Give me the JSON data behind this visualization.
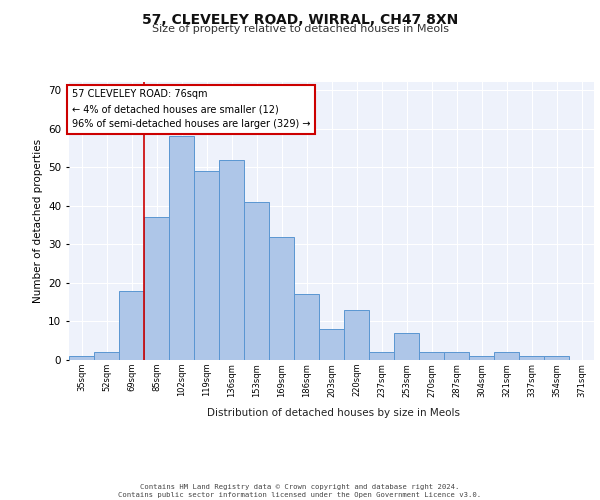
{
  "title1": "57, CLEVELEY ROAD, WIRRAL, CH47 8XN",
  "title2": "Size of property relative to detached houses in Meols",
  "xlabel": "Distribution of detached houses by size in Meols",
  "ylabel": "Number of detached properties",
  "bin_labels": [
    "35sqm",
    "52sqm",
    "69sqm",
    "85sqm",
    "102sqm",
    "119sqm",
    "136sqm",
    "153sqm",
    "169sqm",
    "186sqm",
    "203sqm",
    "220sqm",
    "237sqm",
    "253sqm",
    "270sqm",
    "287sqm",
    "304sqm",
    "321sqm",
    "337sqm",
    "354sqm",
    "371sqm"
  ],
  "bar_heights": [
    1,
    2,
    18,
    37,
    58,
    49,
    52,
    41,
    32,
    17,
    8,
    13,
    2,
    7,
    2,
    2,
    1,
    2,
    1,
    1,
    0
  ],
  "bar_color": "#aec6e8",
  "bar_edge_color": "#5a96d2",
  "bg_color": "#eef2fb",
  "grid_color": "#ffffff",
  "annotation_text": "57 CLEVELEY ROAD: 76sqm\n← 4% of detached houses are smaller (12)\n96% of semi-detached houses are larger (329) →",
  "annotation_box_color": "#ffffff",
  "annotation_box_edge_color": "#cc0000",
  "vline_x_index": 2,
  "vline_color": "#cc0000",
  "ylim": [
    0,
    72
  ],
  "yticks": [
    0,
    10,
    20,
    30,
    40,
    50,
    60,
    70
  ],
  "footer1": "Contains HM Land Registry data © Crown copyright and database right 2024.",
  "footer2": "Contains public sector information licensed under the Open Government Licence v3.0."
}
